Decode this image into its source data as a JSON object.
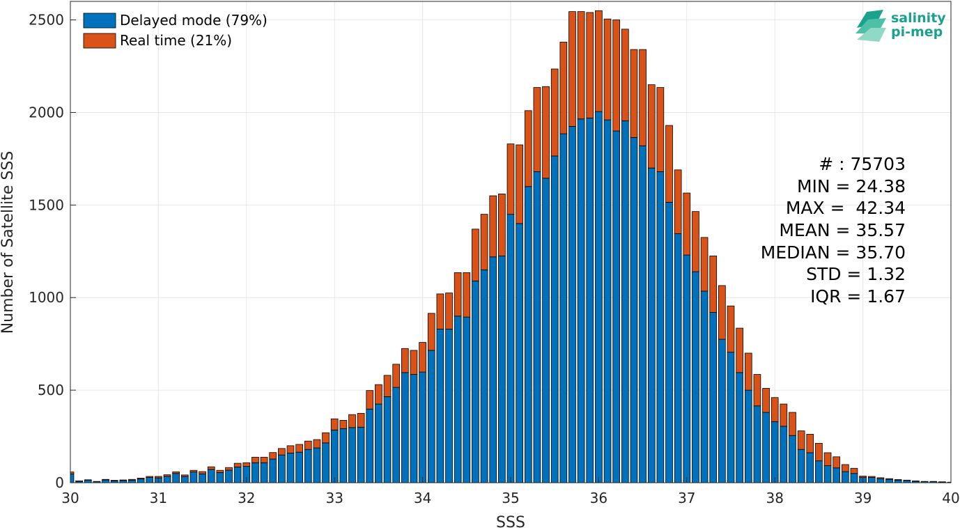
{
  "chart_data": {
    "type": "bar",
    "stacked": true,
    "xlabel": "SSS",
    "ylabel": "Number of Satellite SSS",
    "xlim": [
      30,
      40
    ],
    "ylim": [
      0,
      2600
    ],
    "xticks": [
      "30",
      "31",
      "32",
      "33",
      "34",
      "35",
      "36",
      "37",
      "38",
      "39",
      "40"
    ],
    "yticks": [
      "0",
      "500",
      "1000",
      "1500",
      "2000",
      "2500"
    ],
    "grid": true,
    "legend_position": "top-left",
    "bin_width": 0.1,
    "x": [
      30.0,
      30.1,
      30.2,
      30.3,
      30.4,
      30.5,
      30.6,
      30.7,
      30.8,
      30.9,
      31.0,
      31.1,
      31.2,
      31.3,
      31.4,
      31.5,
      31.6,
      31.7,
      31.8,
      31.9,
      32.0,
      32.1,
      32.2,
      32.3,
      32.4,
      32.5,
      32.6,
      32.7,
      32.8,
      32.9,
      33.0,
      33.1,
      33.2,
      33.3,
      33.4,
      33.5,
      33.6,
      33.7,
      33.8,
      33.9,
      34.0,
      34.1,
      34.2,
      34.3,
      34.4,
      34.5,
      34.6,
      34.7,
      34.8,
      34.9,
      35.0,
      35.1,
      35.2,
      35.3,
      35.4,
      35.5,
      35.6,
      35.7,
      35.8,
      35.9,
      36.0,
      36.1,
      36.2,
      36.3,
      36.4,
      36.5,
      36.6,
      36.7,
      36.8,
      36.9,
      37.0,
      37.1,
      37.2,
      37.3,
      37.4,
      37.5,
      37.6,
      37.7,
      37.8,
      37.9,
      38.0,
      38.1,
      38.2,
      38.3,
      38.4,
      38.5,
      38.6,
      38.7,
      38.8,
      38.9,
      39.0,
      39.1,
      39.2,
      39.3,
      39.4,
      39.5,
      39.6,
      39.7,
      39.8,
      39.9,
      40.0
    ],
    "series": [
      {
        "name": "Delayed mode (79%)",
        "color": "#0072bd",
        "values": [
          48,
          8,
          14,
          6,
          15,
          10,
          12,
          14,
          20,
          28,
          26,
          35,
          50,
          34,
          58,
          48,
          72,
          55,
          68,
          85,
          88,
          108,
          108,
          128,
          150,
          160,
          165,
          180,
          188,
          215,
          285,
          292,
          298,
          300,
          398,
          425,
          465,
          515,
          595,
          585,
          598,
          715,
          830,
          830,
          900,
          895,
          1090,
          1150,
          1220,
          1225,
          1450,
          1400,
          1600,
          1680,
          1645,
          1765,
          1885,
          1925,
          1965,
          1970,
          2005,
          1960,
          1900,
          1955,
          1865,
          1820,
          1700,
          1680,
          1515,
          1345,
          1230,
          1140,
          1035,
          920,
          775,
          705,
          595,
          500,
          415,
          380,
          330,
          305,
          255,
          180,
          162,
          118,
          92,
          80,
          60,
          50,
          28,
          28,
          22,
          18,
          14,
          12,
          8,
          6,
          6,
          4,
          3
        ]
      },
      {
        "name": "Real time (21%)",
        "color": "#d95319",
        "values": [
          10,
          2,
          2,
          1,
          3,
          3,
          3,
          4,
          5,
          6,
          8,
          8,
          9,
          8,
          9,
          12,
          14,
          12,
          14,
          20,
          20,
          30,
          30,
          35,
          35,
          40,
          42,
          45,
          45,
          55,
          60,
          45,
          70,
          75,
          100,
          105,
          115,
          125,
          130,
          130,
          160,
          200,
          190,
          195,
          235,
          240,
          280,
          300,
          330,
          335,
          380,
          425,
          410,
          455,
          495,
          470,
          495,
          620,
          580,
          570,
          545,
          545,
          600,
          495,
          475,
          520,
          450,
          455,
          415,
          345,
          335,
          325,
          290,
          305,
          290,
          250,
          240,
          200,
          170,
          130,
          130,
          120,
          125,
          100,
          100,
          95,
          70,
          60,
          38,
          28,
          8,
          6,
          5,
          4,
          3,
          2,
          2,
          1,
          1,
          1,
          0
        ]
      }
    ]
  },
  "stats": {
    "count": "# : 75703",
    "min": "MIN = 24.38",
    "max": "MAX =  42.34",
    "mean": "MEAN = 35.57",
    "median": "MEDIAN = 35.70",
    "std": "STD = 1.32",
    "iqr": "IQR = 1.67"
  },
  "logo": {
    "line1": "salinity",
    "line2": "pi-mep"
  },
  "colors": {
    "grid": "#e6e6e6",
    "axis": "#262626",
    "logo": "#1aa28e"
  }
}
